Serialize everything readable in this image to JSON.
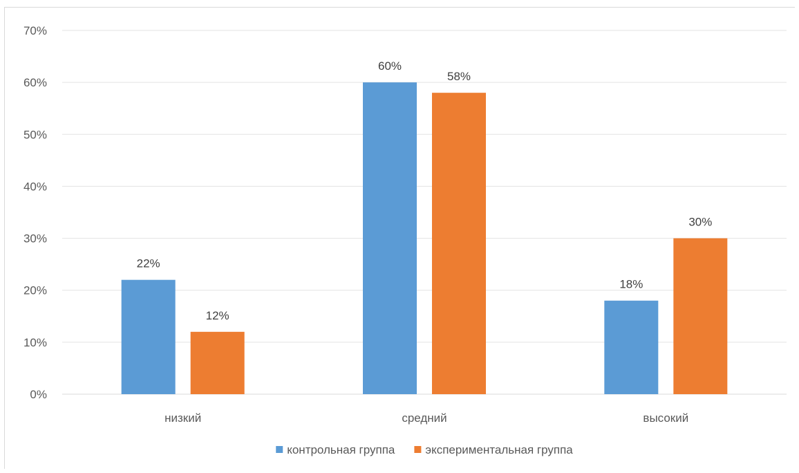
{
  "chart_data": {
    "type": "bar",
    "categories": [
      "низкий",
      "средний",
      "высокий"
    ],
    "series": [
      {
        "name": "контрольная группа",
        "values": [
          22,
          60,
          18
        ],
        "labels": [
          "22%",
          "60%",
          "18%"
        ],
        "color": "#5b9bd5"
      },
      {
        "name": "экспериментальная группа",
        "values": [
          12,
          58,
          30
        ],
        "labels": [
          "12%",
          "58%",
          "30%"
        ],
        "color": "#ed7d31"
      }
    ],
    "yticks": [
      "0%",
      "10%",
      "20%",
      "30%",
      "40%",
      "50%",
      "60%",
      "70%"
    ],
    "ylim": [
      0,
      70
    ],
    "grid": true,
    "legend_position": "bottom"
  }
}
